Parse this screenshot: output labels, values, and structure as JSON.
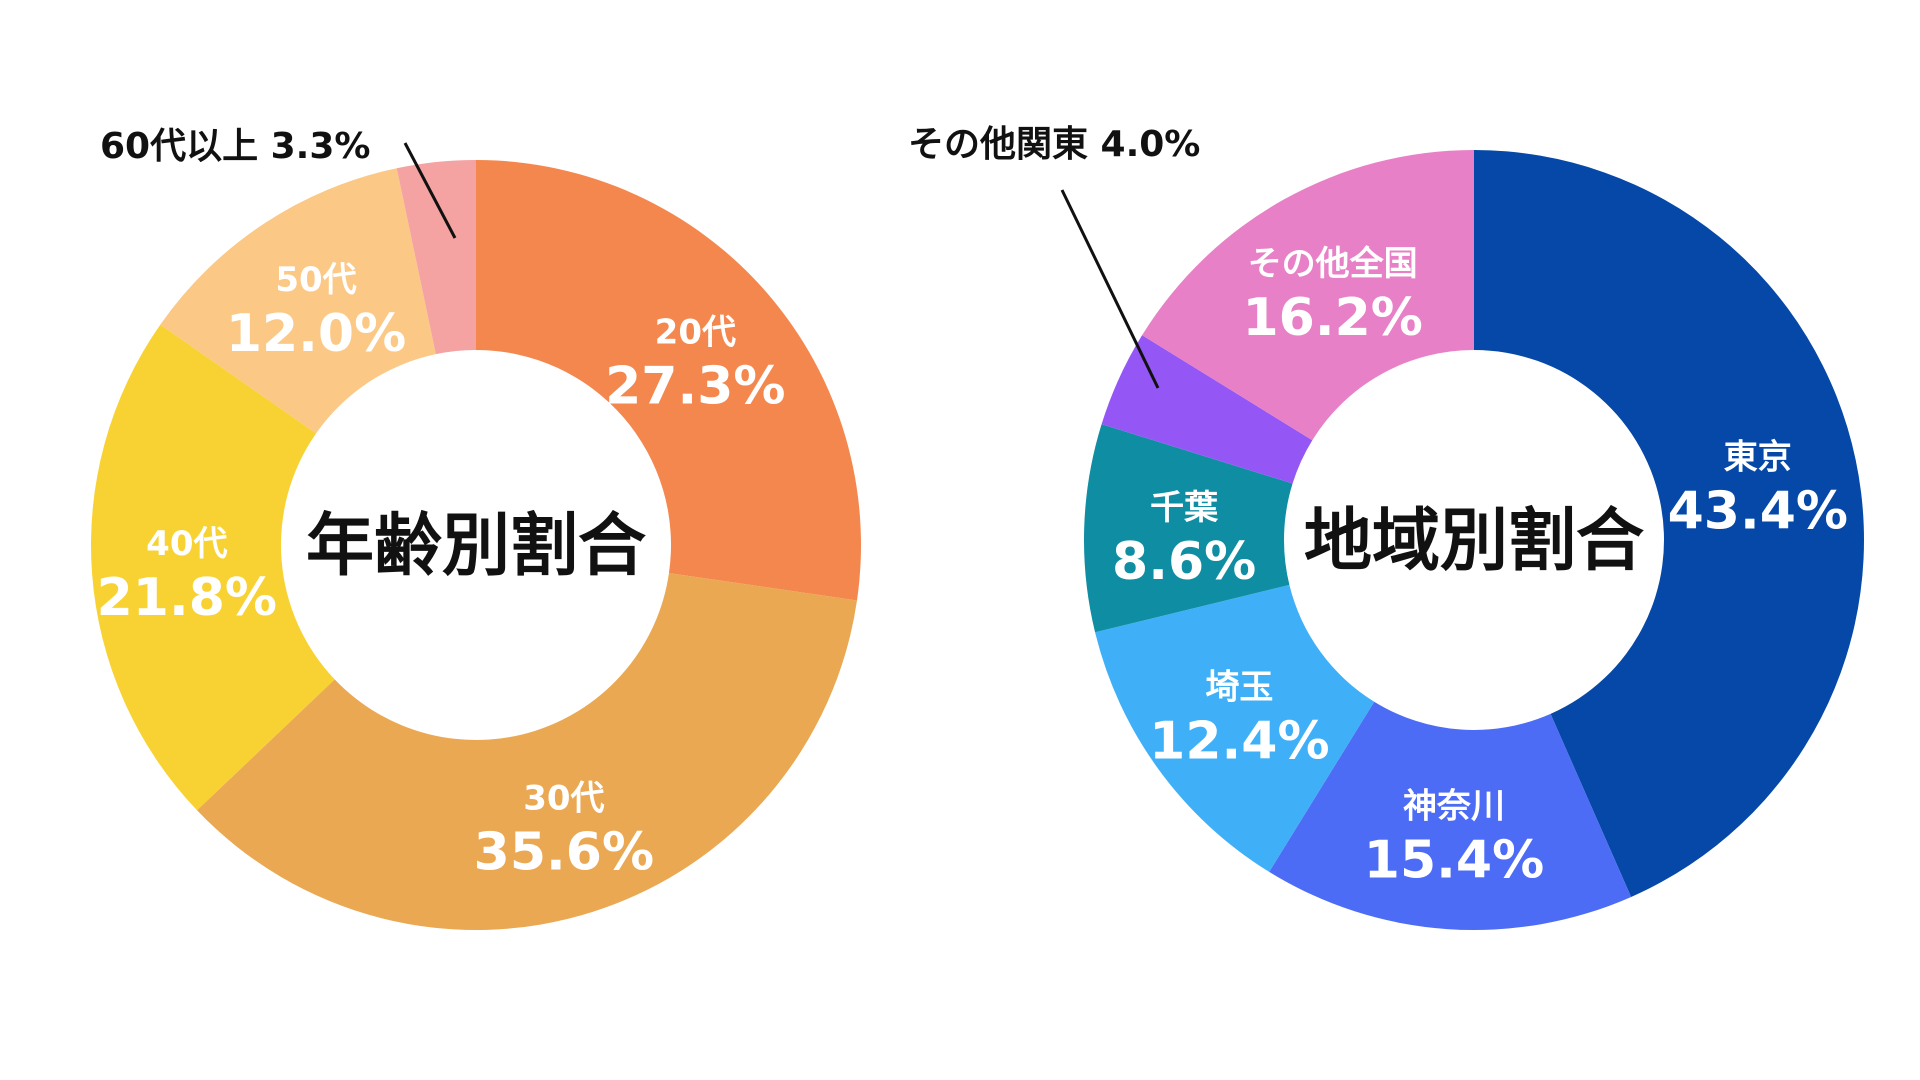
{
  "chart_data": [
    {
      "type": "pie",
      "donut": true,
      "center_title": "年齢別割合",
      "slices": [
        {
          "category": "20代",
          "value": 27.3,
          "display": "27.3%",
          "color": "#F4874E"
        },
        {
          "category": "30代",
          "value": 35.6,
          "display": "35.6%",
          "color": "#EAA853"
        },
        {
          "category": "40代",
          "value": 21.8,
          "display": "21.8%",
          "color": "#F7D232"
        },
        {
          "category": "50代",
          "value": 12.0,
          "display": "12.0%",
          "color": "#FBC886"
        },
        {
          "category": "60代以上",
          "value": 3.3,
          "display": "3.3%",
          "color": "#F5A2A2",
          "callout_text": "60代以上 3.3%"
        }
      ]
    },
    {
      "type": "pie",
      "donut": true,
      "center_title": "地域別割合",
      "slices": [
        {
          "category": "東京",
          "value": 43.4,
          "display": "43.4%",
          "color": "#0548A8"
        },
        {
          "category": "神奈川",
          "value": 15.4,
          "display": "15.4%",
          "color": "#4D6CF5"
        },
        {
          "category": "埼玉",
          "value": 12.4,
          "display": "12.4%",
          "color": "#3FB0F7"
        },
        {
          "category": "千葉",
          "value": 8.6,
          "display": "8.6%",
          "color": "#0F8DA2"
        },
        {
          "category": "その他関東",
          "value": 4.0,
          "display": "4.0%",
          "color": "#9556F6",
          "callout_text": "その他関東 4.0%"
        },
        {
          "category": "その他全国",
          "value": 16.2,
          "display": "16.2%",
          "color": "#E780C6"
        }
      ]
    }
  ]
}
